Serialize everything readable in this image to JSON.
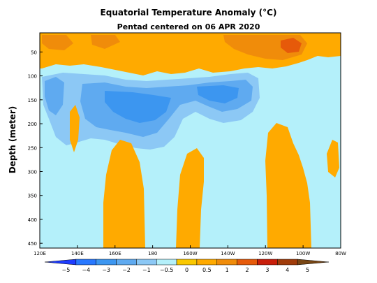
{
  "chart_data": {
    "type": "heatmap",
    "title": "Equatorial Temperature Anomaly (°C)",
    "subtitle": "Pentad centered on 06 APR 2020",
    "xlabel": "",
    "ylabel": "Depth (meter)",
    "x_ticks": [
      "120E",
      "140E",
      "160E",
      "180",
      "160W",
      "140W",
      "120W",
      "100W",
      "80W"
    ],
    "x_values": [
      120,
      140,
      160,
      180,
      200,
      220,
      240,
      260,
      280
    ],
    "xlim": [
      120,
      280
    ],
    "y_ticks": [
      50,
      100,
      150,
      200,
      250,
      300,
      350,
      400,
      450
    ],
    "ylim": [
      460,
      10
    ],
    "colorbar": {
      "labels": [
        "−5",
        "−4",
        "−3",
        "−2",
        "−1",
        "−0.5",
        "0",
        "0.5",
        "1",
        "2",
        "3",
        "4",
        "5"
      ],
      "colors": [
        "#1e3cff",
        "#2878ff",
        "#3c96f0",
        "#5faaf0",
        "#8cc8f5",
        "#b4f0fa",
        "#fac800",
        "#ffaa00",
        "#f08c0a",
        "#e65a0a",
        "#c81e0a",
        "#a03c0a",
        "#784614"
      ]
    },
    "regions": [
      {
        "name": "near-zero-positive background",
        "level": 0.25
      },
      {
        "name": "surface warm layer",
        "level": 0.75,
        "depth_range": [
          10,
          100
        ],
        "lon_range": [
          120,
          265
        ]
      },
      {
        "name": "hot spot east",
        "level": 2.5,
        "lon_center": 245,
        "depth_center": 40
      },
      {
        "name": "thermocline cold tongue",
        "level": -1.5,
        "depth_range": [
          90,
          210
        ],
        "lon_range": [
          125,
          240
        ]
      },
      {
        "name": "deep warm west",
        "level": 0.25,
        "lon_range": [
          160,
          175
        ],
        "depth_range": [
          250,
          460
        ]
      },
      {
        "name": "deep warm central",
        "level": 0.25,
        "lon_range": [
          190,
          205
        ],
        "depth_range": [
          260,
          460
        ]
      },
      {
        "name": "deep warm east",
        "level": 0.25,
        "lon_range": [
          225,
          265
        ],
        "depth_range": [
          170,
          460
        ]
      }
    ]
  }
}
